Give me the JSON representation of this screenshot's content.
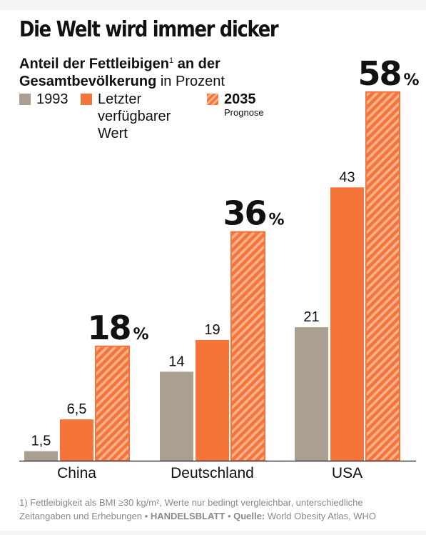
{
  "title": "Die Welt wird immer dicker",
  "subtitle": {
    "bold": "Anteil der Fettleibigen",
    "footnote_mark": "1",
    "bold_cont": "an der",
    "bold2": "Gesamtbevölkerung",
    "rest": "in Prozent"
  },
  "legend": {
    "item1": "1993",
    "item2": "Letzter verfügbarer Wert",
    "item3": "2035",
    "item3_sub": "Prognose"
  },
  "footnote": {
    "text": "1) Fettleibigkeit als BMI ≥30 kg/m², Werte nur bedingt vergleichbar, unterschiedliche Zeitangaben und Erhebungen •",
    "brand": "HANDELSBLATT",
    "sep": "•",
    "source_label": "Quelle:",
    "source": "World Obesity Atlas, WHO"
  },
  "chart_data": {
    "type": "bar",
    "categories": [
      "China",
      "Deutschland",
      "USA"
    ],
    "series": [
      {
        "name": "1993",
        "values": [
          1.5,
          14,
          21
        ],
        "labels": [
          "1,5",
          "14",
          "21"
        ],
        "color": "#ab9f92"
      },
      {
        "name": "Letzter verfügbarer Wert",
        "values": [
          6.5,
          19,
          43
        ],
        "labels": [
          "6,5",
          "19",
          "43"
        ],
        "color": "#f5743a"
      },
      {
        "name": "2035 Prognose",
        "values": [
          18,
          36,
          58
        ],
        "labels": [
          "18",
          "36",
          "58"
        ],
        "unit": "%",
        "color": "#f5743a",
        "pattern": "hatched"
      }
    ],
    "ylim": [
      0,
      60
    ],
    "grid": false,
    "legend_position": "top-left"
  }
}
